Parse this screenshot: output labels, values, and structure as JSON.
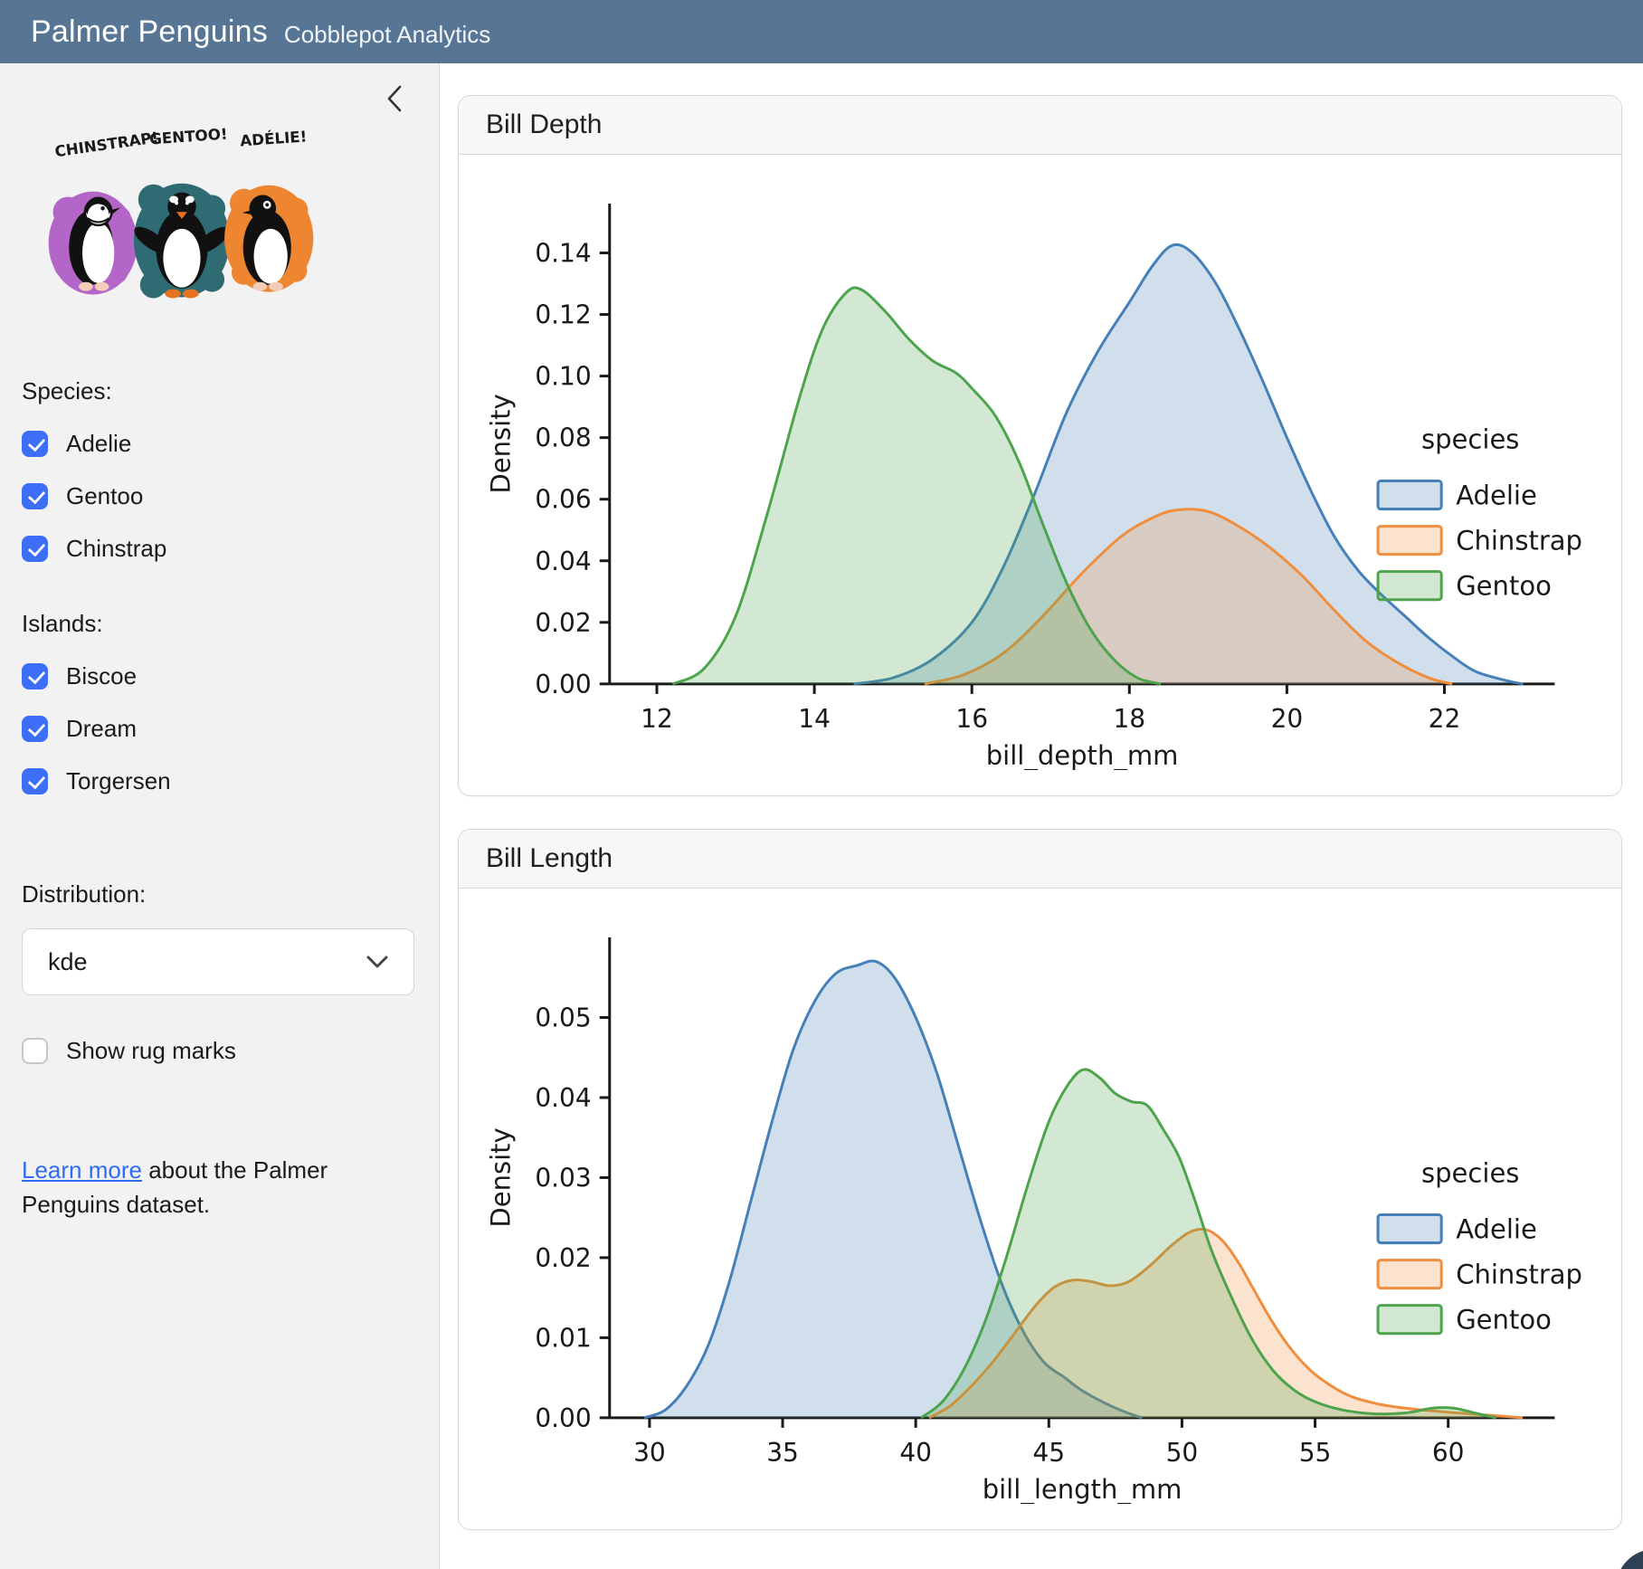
{
  "header": {
    "title": "Palmer Penguins",
    "subtitle": "Cobblepot Analytics"
  },
  "sidebar": {
    "artwork": {
      "labels": [
        "CHINSTRAP!",
        "GENTOO!",
        "ADÉLIE!"
      ]
    },
    "species": {
      "label": "Species:",
      "items": [
        {
          "label": "Adelie",
          "checked": true
        },
        {
          "label": "Gentoo",
          "checked": true
        },
        {
          "label": "Chinstrap",
          "checked": true
        }
      ]
    },
    "islands": {
      "label": "Islands:",
      "items": [
        {
          "label": "Biscoe",
          "checked": true
        },
        {
          "label": "Dream",
          "checked": true
        },
        {
          "label": "Torgersen",
          "checked": true
        }
      ]
    },
    "distribution": {
      "label": "Distribution:",
      "value": "kde"
    },
    "rug": {
      "label": "Show rug marks",
      "checked": false
    },
    "learn_more": {
      "link_text": "Learn more",
      "text_after": " about the Palmer Penguins dataset."
    }
  },
  "cards": [
    {
      "title": "Bill Depth"
    },
    {
      "title": "Bill Length"
    }
  ],
  "colors": {
    "header_bg": "#577595",
    "sidebar_bg": "#f2f2f2",
    "checkbox_blue": "#3d6ef7",
    "link_blue": "#2e6cf5",
    "adelie": "#4680b8",
    "chinstrap": "#ef8e3e",
    "gentoo": "#4da44d"
  },
  "chart_data": [
    {
      "type": "area",
      "title": "Bill Depth",
      "xlabel": "bill_depth_mm",
      "ylabel": "Density",
      "xlim": [
        11.4,
        23.4
      ],
      "ylim": [
        0,
        0.156
      ],
      "xticks": [
        12,
        14,
        16,
        18,
        20,
        22
      ],
      "xtick_labels": [
        "12",
        "14",
        "16",
        "18",
        "20",
        "22"
      ],
      "yticks": [
        0,
        0.02,
        0.04,
        0.06,
        0.08,
        0.1,
        0.12,
        0.14
      ],
      "ytick_labels": [
        "0.00",
        "0.02",
        "0.04",
        "0.06",
        "0.08",
        "0.10",
        "0.12",
        "0.14"
      ],
      "grid": false,
      "legend": {
        "title": "species",
        "position": "center right",
        "entries": [
          "Adelie",
          "Chinstrap",
          "Gentoo"
        ]
      },
      "series": [
        {
          "name": "Adelie",
          "stroke": "#4680b8",
          "fill": "rgba(70,128,184,0.25)",
          "points": [
            [
              14.5,
              0
            ],
            [
              15.0,
              0.002
            ],
            [
              15.5,
              0.008
            ],
            [
              16.0,
              0.02
            ],
            [
              16.4,
              0.038
            ],
            [
              16.8,
              0.062
            ],
            [
              17.2,
              0.088
            ],
            [
              17.6,
              0.108
            ],
            [
              18.0,
              0.124
            ],
            [
              18.3,
              0.136
            ],
            [
              18.55,
              0.1425
            ],
            [
              18.8,
              0.14
            ],
            [
              19.1,
              0.13
            ],
            [
              19.4,
              0.115
            ],
            [
              19.7,
              0.098
            ],
            [
              20.0,
              0.08
            ],
            [
              20.3,
              0.063
            ],
            [
              20.6,
              0.048
            ],
            [
              20.9,
              0.037
            ],
            [
              21.2,
              0.029
            ],
            [
              21.5,
              0.022
            ],
            [
              21.8,
              0.015
            ],
            [
              22.1,
              0.009
            ],
            [
              22.4,
              0.004
            ],
            [
              22.8,
              0.001
            ],
            [
              23.0,
              0
            ]
          ]
        },
        {
          "name": "Chinstrap",
          "stroke": "#ef8e3e",
          "fill": "rgba(239,142,62,0.25)",
          "points": [
            [
              15.4,
              0
            ],
            [
              15.9,
              0.003
            ],
            [
              16.4,
              0.01
            ],
            [
              16.9,
              0.022
            ],
            [
              17.4,
              0.036
            ],
            [
              17.9,
              0.048
            ],
            [
              18.3,
              0.054
            ],
            [
              18.6,
              0.0565
            ],
            [
              19.0,
              0.056
            ],
            [
              19.4,
              0.051
            ],
            [
              19.8,
              0.044
            ],
            [
              20.2,
              0.035
            ],
            [
              20.6,
              0.024
            ],
            [
              21.0,
              0.014
            ],
            [
              21.4,
              0.007
            ],
            [
              21.8,
              0.002
            ],
            [
              22.1,
              0
            ]
          ]
        },
        {
          "name": "Gentoo",
          "stroke": "#4da44d",
          "fill": "rgba(77,164,77,0.25)",
          "points": [
            [
              12.2,
              0
            ],
            [
              12.6,
              0.005
            ],
            [
              13.0,
              0.022
            ],
            [
              13.4,
              0.055
            ],
            [
              13.8,
              0.092
            ],
            [
              14.1,
              0.115
            ],
            [
              14.4,
              0.127
            ],
            [
              14.6,
              0.128
            ],
            [
              14.9,
              0.121
            ],
            [
              15.2,
              0.112
            ],
            [
              15.5,
              0.105
            ],
            [
              15.8,
              0.101
            ],
            [
              16.0,
              0.096
            ],
            [
              16.3,
              0.087
            ],
            [
              16.6,
              0.072
            ],
            [
              16.9,
              0.052
            ],
            [
              17.2,
              0.033
            ],
            [
              17.5,
              0.018
            ],
            [
              17.8,
              0.008
            ],
            [
              18.1,
              0.002
            ],
            [
              18.4,
              0
            ]
          ]
        }
      ]
    },
    {
      "type": "area",
      "title": "Bill Length",
      "xlabel": "bill_length_mm",
      "ylabel": "Density",
      "xlim": [
        28.5,
        64.0
      ],
      "ylim": [
        0,
        0.06
      ],
      "xticks": [
        30,
        35,
        40,
        45,
        50,
        55,
        60
      ],
      "xtick_labels": [
        "30",
        "35",
        "40",
        "45",
        "50",
        "55",
        "60"
      ],
      "yticks": [
        0,
        0.01,
        0.02,
        0.03,
        0.04,
        0.05
      ],
      "ytick_labels": [
        "0.00",
        "0.01",
        "0.02",
        "0.03",
        "0.04",
        "0.05"
      ],
      "grid": false,
      "legend": {
        "title": "species",
        "position": "center right",
        "entries": [
          "Adelie",
          "Chinstrap",
          "Gentoo"
        ]
      },
      "series": [
        {
          "name": "Adelie",
          "stroke": "#4680b8",
          "fill": "rgba(70,128,184,0.25)",
          "points": [
            [
              29.8,
              0
            ],
            [
              30.6,
              0.001
            ],
            [
              31.4,
              0.004
            ],
            [
              32.2,
              0.009
            ],
            [
              33.0,
              0.017
            ],
            [
              33.8,
              0.027
            ],
            [
              34.6,
              0.037
            ],
            [
              35.4,
              0.046
            ],
            [
              36.2,
              0.052
            ],
            [
              37.0,
              0.0555
            ],
            [
              37.8,
              0.0565
            ],
            [
              38.5,
              0.057
            ],
            [
              39.2,
              0.055
            ],
            [
              40.0,
              0.05
            ],
            [
              40.8,
              0.043
            ],
            [
              41.6,
              0.034
            ],
            [
              42.4,
              0.025
            ],
            [
              43.2,
              0.017
            ],
            [
              44.0,
              0.011
            ],
            [
              44.8,
              0.007
            ],
            [
              45.6,
              0.005
            ],
            [
              46.2,
              0.0035
            ],
            [
              47.0,
              0.002
            ],
            [
              47.8,
              0.0008
            ],
            [
              48.5,
              0
            ]
          ]
        },
        {
          "name": "Chinstrap",
          "stroke": "#ef8e3e",
          "fill": "rgba(239,142,62,0.25)",
          "points": [
            [
              40.5,
              0
            ],
            [
              41.3,
              0.0015
            ],
            [
              42.1,
              0.004
            ],
            [
              42.9,
              0.007
            ],
            [
              43.7,
              0.0105
            ],
            [
              44.5,
              0.014
            ],
            [
              45.2,
              0.0163
            ],
            [
              45.9,
              0.0172
            ],
            [
              46.6,
              0.017
            ],
            [
              47.3,
              0.0165
            ],
            [
              48.0,
              0.017
            ],
            [
              48.8,
              0.019
            ],
            [
              49.6,
              0.0215
            ],
            [
              50.3,
              0.0232
            ],
            [
              50.9,
              0.0235
            ],
            [
              51.5,
              0.0222
            ],
            [
              52.1,
              0.0195
            ],
            [
              52.7,
              0.016
            ],
            [
              53.3,
              0.0125
            ],
            [
              54.0,
              0.009
            ],
            [
              54.8,
              0.006
            ],
            [
              55.6,
              0.004
            ],
            [
              56.4,
              0.0026
            ],
            [
              57.4,
              0.0017
            ],
            [
              58.4,
              0.0012
            ],
            [
              59.6,
              0.0008
            ],
            [
              60.8,
              0.0005
            ],
            [
              62.0,
              0.0002
            ],
            [
              62.8,
              0
            ]
          ]
        },
        {
          "name": "Gentoo",
          "stroke": "#4da44d",
          "fill": "rgba(77,164,77,0.25)",
          "points": [
            [
              40.2,
              0
            ],
            [
              41.0,
              0.002
            ],
            [
              41.8,
              0.006
            ],
            [
              42.6,
              0.012
            ],
            [
              43.4,
              0.02
            ],
            [
              44.2,
              0.029
            ],
            [
              45.0,
              0.037
            ],
            [
              45.7,
              0.0415
            ],
            [
              46.3,
              0.0435
            ],
            [
              46.9,
              0.0425
            ],
            [
              47.5,
              0.0405
            ],
            [
              48.1,
              0.0395
            ],
            [
              48.7,
              0.039
            ],
            [
              49.3,
              0.036
            ],
            [
              49.9,
              0.0325
            ],
            [
              50.5,
              0.027
            ],
            [
              51.1,
              0.021
            ],
            [
              51.8,
              0.0155
            ],
            [
              52.6,
              0.01
            ],
            [
              53.4,
              0.006
            ],
            [
              54.2,
              0.0035
            ],
            [
              55.0,
              0.002
            ],
            [
              56.0,
              0.001
            ],
            [
              57.2,
              0.0005
            ],
            [
              58.4,
              0.0006
            ],
            [
              59.4,
              0.0012
            ],
            [
              60.2,
              0.0012
            ],
            [
              61.0,
              0.0006
            ],
            [
              61.8,
              0
            ]
          ]
        }
      ]
    }
  ]
}
